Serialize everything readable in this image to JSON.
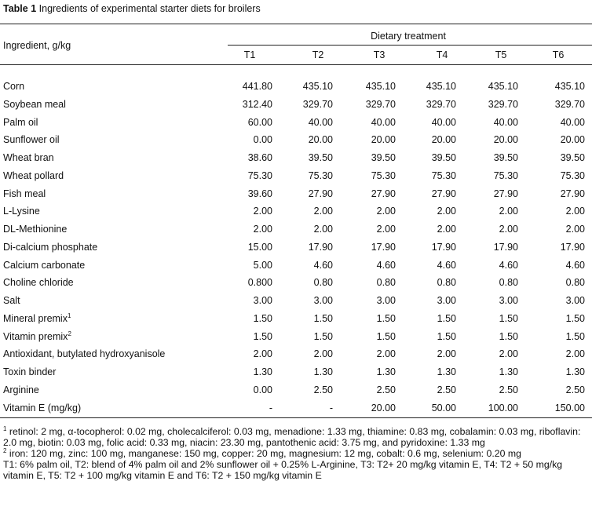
{
  "title": {
    "label": "Table 1",
    "text": "Ingredients of experimental starter diets for broilers"
  },
  "header": {
    "ingredient": "Ingredient, g/kg",
    "group": "Dietary treatment",
    "treatments": [
      "T1",
      "T2",
      "T3",
      "T4",
      "T5",
      "T6"
    ]
  },
  "rows": [
    {
      "name": "Corn",
      "values": [
        "441.80",
        "435.10",
        "435.10",
        "435.10",
        "435.10",
        "435.10"
      ]
    },
    {
      "name": "Soybean meal",
      "values": [
        "312.40",
        "329.70",
        "329.70",
        "329.70",
        "329.70",
        "329.70"
      ]
    },
    {
      "name": "Palm oil",
      "values": [
        "60.00",
        "40.00",
        "40.00",
        "40.00",
        "40.00",
        "40.00"
      ]
    },
    {
      "name": "Sunflower oil",
      "values": [
        "0.00",
        "20.00",
        "20.00",
        "20.00",
        "20.00",
        "20.00"
      ]
    },
    {
      "name": "Wheat bran",
      "values": [
        "38.60",
        "39.50",
        "39.50",
        "39.50",
        "39.50",
        "39.50"
      ]
    },
    {
      "name": "Wheat pollard",
      "values": [
        "75.30",
        "75.30",
        "75.30",
        "75.30",
        "75.30",
        "75.30"
      ]
    },
    {
      "name": "Fish meal",
      "values": [
        "39.60",
        "27.90",
        "27.90",
        "27.90",
        "27.90",
        "27.90"
      ]
    },
    {
      "name": "L-Lysine",
      "values": [
        "2.00",
        "2.00",
        "2.00",
        "2.00",
        "2.00",
        "2.00"
      ]
    },
    {
      "name": "DL-Methionine",
      "values": [
        "2.00",
        "2.00",
        "2.00",
        "2.00",
        "2.00",
        "2.00"
      ]
    },
    {
      "name": "Di-calcium phosphate",
      "values": [
        "15.00",
        "17.90",
        "17.90",
        "17.90",
        "17.90",
        "17.90"
      ]
    },
    {
      "name": "Calcium carbonate",
      "values": [
        "5.00",
        "4.60",
        "4.60",
        "4.60",
        "4.60",
        "4.60"
      ]
    },
    {
      "name": "Choline chloride",
      "values": [
        "0.800",
        "0.80",
        "0.80",
        "0.80",
        "0.80",
        "0.80"
      ]
    },
    {
      "name": "Salt",
      "values": [
        "3.00",
        "3.00",
        "3.00",
        "3.00",
        "3.00",
        "3.00"
      ]
    },
    {
      "name": "Mineral premix",
      "note": "1",
      "values": [
        "1.50",
        "1.50",
        "1.50",
        "1.50",
        "1.50",
        "1.50"
      ]
    },
    {
      "name": "Vitamin premix",
      "note": "2",
      "values": [
        "1.50",
        "1.50",
        "1.50",
        "1.50",
        "1.50",
        "1.50"
      ]
    },
    {
      "name": "Antioxidant, butylated hydroxyanisole",
      "values": [
        "2.00",
        "2.00",
        "2.00",
        "2.00",
        "2.00",
        "2.00"
      ]
    },
    {
      "name": "Toxin binder",
      "values": [
        "1.30",
        "1.30",
        "1.30",
        "1.30",
        "1.30",
        "1.30"
      ]
    },
    {
      "name": "Arginine",
      "values": [
        "0.00",
        "2.50",
        "2.50",
        "2.50",
        "2.50",
        "2.50"
      ]
    },
    {
      "name": "Vitamin E (mg/kg)",
      "values": [
        "-",
        "-",
        "20.00",
        "50.00",
        "100.00",
        "150.00"
      ]
    }
  ],
  "footnotes": [
    {
      "mark": "1",
      "text": "retinol: 2 mg, α-tocopherol: 0.02 mg, cholecalciferol: 0.03 mg, menadione: 1.33 mg, thiamine: 0.83 mg, cobalamin: 0.03 mg, riboflavin: 2.0 mg, biotin: 0.03 mg, folic acid: 0.33 mg, niacin: 23.30 mg, pantothenic acid: 3.75 mg, and pyridoxine: 1.33 mg"
    },
    {
      "mark": "2",
      "text": "iron: 120 mg, zinc: 100 mg, manganese: 150 mg, copper: 20 mg, magnesium: 12 mg, cobalt: 0.6 mg, selenium: 0.20 mg"
    },
    {
      "text": "T1: 6% palm oil, T2: blend of 4% palm oil and 2% sunflower oil + 0.25% L-Arginine, T3: T2+ 20 mg/kg vitamin E, T4: T2 + 50 mg/kg vitamin E, T5: T2 + 100 mg/kg vitamin E and T6: T2 + 150 mg/kg vitamin E"
    }
  ]
}
